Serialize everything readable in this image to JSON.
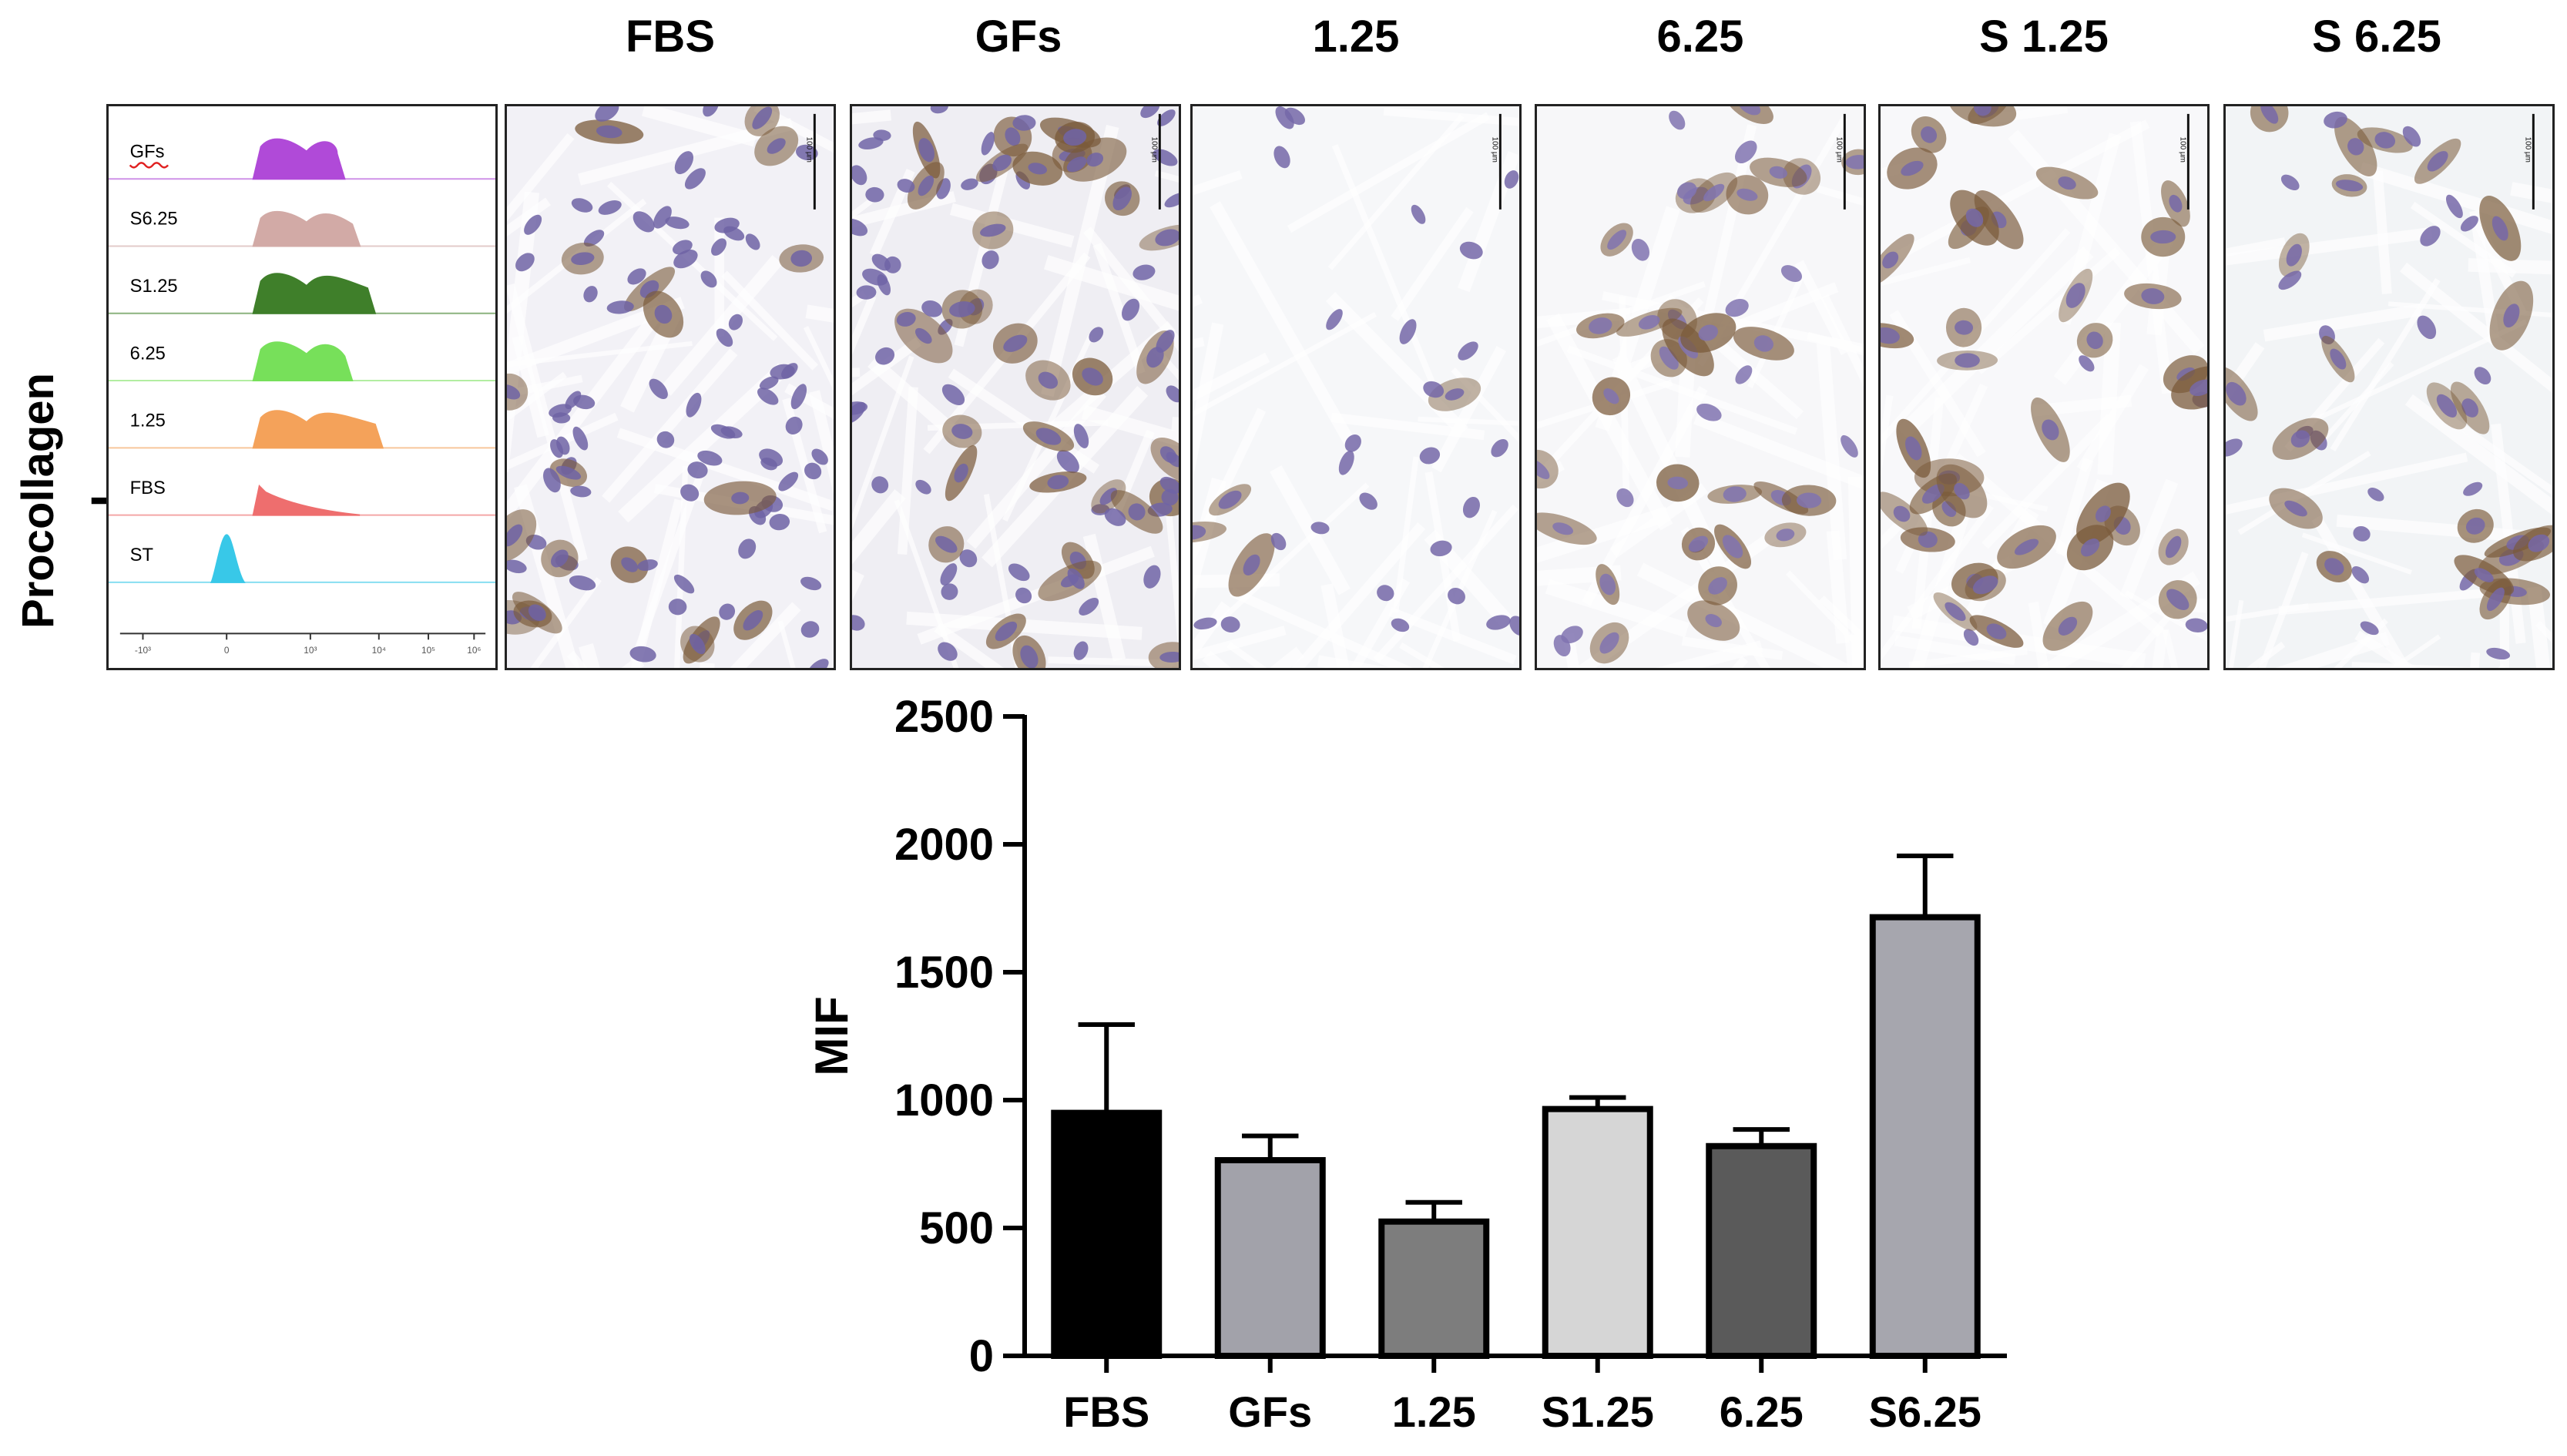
{
  "side_label": "Procollagen I",
  "panels": [
    {
      "title": "FBS",
      "tint": "#f2f1f6",
      "nucleus": "#6f63a4",
      "brown": 0.25,
      "density": "high",
      "scale_bar_label": "100 µm"
    },
    {
      "title": "GFs",
      "tint": "#efeef3",
      "nucleus": "#7064a6",
      "brown": 0.35,
      "density": "high",
      "scale_bar_label": "100 µm"
    },
    {
      "title": "1.25",
      "tint": "#f6f7f9",
      "nucleus": "#7467a8",
      "brown": 0.15,
      "density": "low",
      "scale_bar_label": "100 µm"
    },
    {
      "title": "6.25",
      "tint": "#f7f7f9",
      "nucleus": "#8073b0",
      "brown": 0.75,
      "density": "medium",
      "scale_bar_label": "100 µm"
    },
    {
      "title": "S 1.25",
      "tint": "#f8f8fa",
      "nucleus": "#7568a8",
      "brown": 0.85,
      "density": "medium",
      "scale_bar_label": "100 µm"
    },
    {
      "title": "S 6.25",
      "tint": "#f2f4f6",
      "nucleus": "#7567a8",
      "brown": 0.55,
      "density": "medium",
      "scale_bar_label": "100 µm"
    }
  ],
  "flow": {
    "histograms": [
      {
        "label": "GFs",
        "color": "#b04ad8"
      },
      {
        "label": "S6.25",
        "color": "#d2aaa6"
      },
      {
        "label": "S1.25",
        "color": "#3f7f2a"
      },
      {
        "label": "6.25",
        "color": "#77e05a"
      },
      {
        "label": "1.25",
        "color": "#f4a25a"
      },
      {
        "label": "FBS",
        "color": "#ee6e6e"
      },
      {
        "label": "ST",
        "color": "#38c8e8"
      }
    ],
    "x_ticks": [
      "-10³",
      "0",
      "10³",
      "10⁴",
      "10⁵",
      "10⁶"
    ]
  },
  "chart_data": {
    "type": "bar",
    "title": "",
    "xlabel": "",
    "ylabel": "MIF",
    "ylim": [
      0,
      2500
    ],
    "y_ticks": [
      0,
      500,
      1000,
      1500,
      2000,
      2500
    ],
    "categories": [
      "FBS",
      "GFs",
      "1.25",
      "S1.25",
      "6.25",
      "S6.25"
    ],
    "values": [
      950,
      765,
      525,
      965,
      820,
      1715
    ],
    "errors": [
      345,
      95,
      75,
      45,
      65,
      240
    ],
    "colors": [
      "#000000",
      "#a2a2aa",
      "#7d7d7d",
      "#d6d6d6",
      "#5a5a5a",
      "#a6a6ae"
    ],
    "grid": false,
    "legend": "none"
  }
}
